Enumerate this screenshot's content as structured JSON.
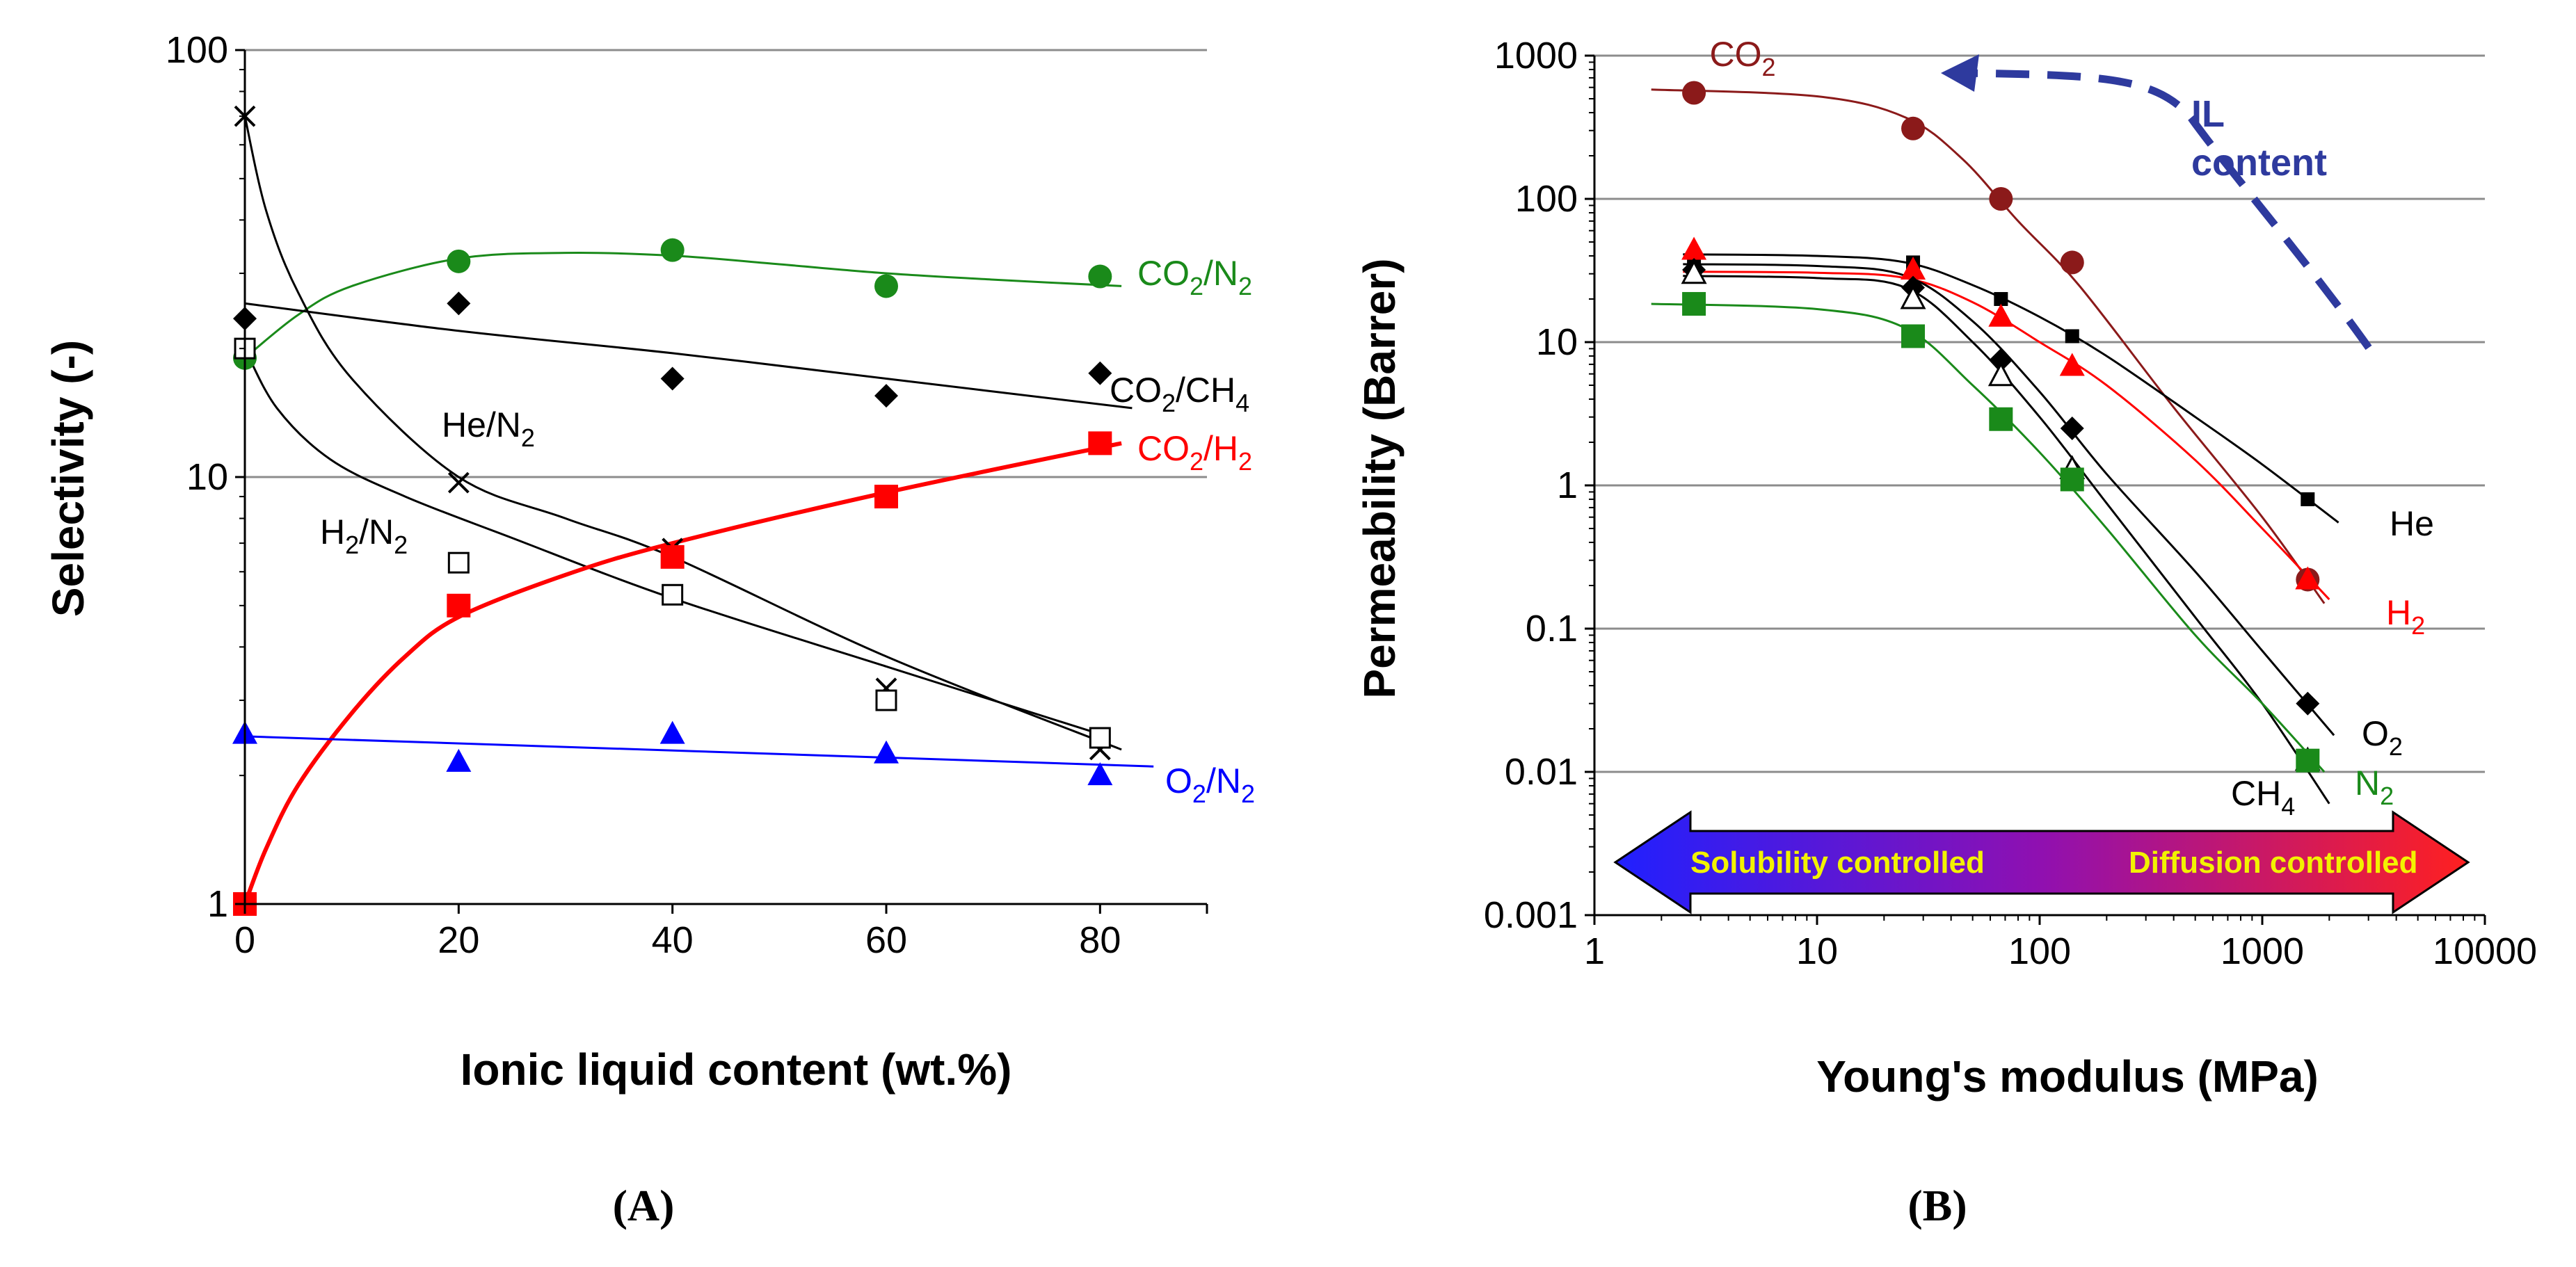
{
  "chart_data": [
    {
      "type": "scatter",
      "panel_label": "(A)",
      "xlabel": "Ionic liquid content (wt.%)",
      "ylabel": "Selectivity  (-)",
      "x_scale": "linear",
      "y_scale": "log",
      "xlim": [
        0,
        90
      ],
      "ylim": [
        1,
        100
      ],
      "x_ticks": [
        "0",
        "20",
        "40",
        "60",
        "80"
      ],
      "y_ticks": [
        "1",
        "10",
        "100"
      ],
      "grid": "horizontal",
      "series": [
        {
          "name": "CO₂/N₂",
          "label_parts": [
            "CO",
            "2",
            "/N",
            "2"
          ],
          "color": "#1a8a1a",
          "marker": "circle",
          "points": [
            [
              0,
              19
            ],
            [
              20,
              32
            ],
            [
              40,
              34
            ],
            [
              60,
              28
            ],
            [
              80,
              29.5
            ]
          ],
          "trend": [
            [
              0,
              19
            ],
            [
              5,
              24
            ],
            [
              10,
              28
            ],
            [
              20,
              32.5
            ],
            [
              30,
              33.5
            ],
            [
              40,
              33
            ],
            [
              50,
              31.5
            ],
            [
              60,
              30
            ],
            [
              70,
              29
            ],
            [
              82,
              28
            ]
          ]
        },
        {
          "name": "CO₂/CH₄",
          "label_parts": [
            "CO",
            "2",
            "/CH",
            "4"
          ],
          "color": "#000000",
          "marker": "diamond",
          "points": [
            [
              0,
              23.5
            ],
            [
              20,
              25.5
            ],
            [
              40,
              17
            ],
            [
              60,
              15.5
            ],
            [
              80,
              17.5
            ]
          ],
          "trend": [
            [
              0,
              25.5
            ],
            [
              20,
              22
            ],
            [
              40,
              19.5
            ],
            [
              60,
              17
            ],
            [
              83,
              14.5
            ]
          ]
        },
        {
          "name": "He/N₂",
          "label_parts": [
            "He/N",
            "2"
          ],
          "color": "#000000",
          "marker": "x",
          "points": [
            [
              0,
              70
            ],
            [
              20,
              9.7
            ],
            [
              40,
              6.8
            ],
            [
              60,
              3.2
            ],
            [
              80,
              2.3
            ]
          ],
          "trend": [
            [
              0,
              70
            ],
            [
              2,
              42
            ],
            [
              5,
              27
            ],
            [
              10,
              17
            ],
            [
              20,
              10
            ],
            [
              30,
              8
            ],
            [
              40,
              6.5
            ],
            [
              60,
              3.8
            ],
            [
              82,
              2.3
            ]
          ]
        },
        {
          "name": "H₂/N₂",
          "label_parts": [
            "H",
            "2",
            "/N",
            "2"
          ],
          "color": "#000000",
          "marker": "square-open",
          "points": [
            [
              0,
              20
            ],
            [
              20,
              6.3
            ],
            [
              40,
              5.3
            ],
            [
              60,
              3.0
            ],
            [
              80,
              2.45
            ]
          ],
          "trend": [
            [
              0,
              20
            ],
            [
              3,
              14.5
            ],
            [
              8,
              11
            ],
            [
              15,
              9
            ],
            [
              25,
              7.2
            ],
            [
              40,
              5.2
            ],
            [
              60,
              3.6
            ],
            [
              80,
              2.5
            ]
          ]
        },
        {
          "name": "CO₂/H₂",
          "label_parts": [
            "CO",
            "2",
            "/H",
            "2"
          ],
          "color": "#ff0000",
          "marker": "square",
          "points": [
            [
              0,
              1.0
            ],
            [
              20,
              5.0
            ],
            [
              40,
              6.5
            ],
            [
              60,
              9.0
            ],
            [
              80,
              12.0
            ]
          ],
          "trend": [
            [
              0,
              1.0
            ],
            [
              2,
              1.35
            ],
            [
              5,
              1.9
            ],
            [
              10,
              2.8
            ],
            [
              15,
              3.8
            ],
            [
              20,
              4.7
            ],
            [
              30,
              5.9
            ],
            [
              40,
              7.0
            ],
            [
              60,
              9.2
            ],
            [
              82,
              12.0
            ]
          ]
        },
        {
          "name": "O₂/N₂",
          "label_parts": [
            "O",
            "2",
            "/N",
            "2"
          ],
          "color": "#0000ff",
          "marker": "triangle",
          "points": [
            [
              0,
              2.5
            ],
            [
              20,
              2.15
            ],
            [
              40,
              2.5
            ],
            [
              60,
              2.25
            ],
            [
              80,
              2.0
            ]
          ],
          "trend": [
            [
              0,
              2.47
            ],
            [
              85,
              2.1
            ]
          ]
        }
      ]
    },
    {
      "type": "scatter",
      "panel_label": "(B)",
      "xlabel": "Young's modulus (MPa)",
      "ylabel": "Permeability  (Barrer)",
      "x_scale": "log",
      "y_scale": "log",
      "xlim": [
        1,
        10000
      ],
      "ylim": [
        0.001,
        1000
      ],
      "x_ticks": [
        "1",
        "10",
        "100",
        "1000",
        "10000"
      ],
      "y_ticks": [
        "0.001",
        "0.01",
        "0.1",
        "1",
        "10",
        "100",
        "1000"
      ],
      "grid": "horizontal",
      "series": [
        {
          "name": "CO₂",
          "label_parts": [
            "CO",
            "2"
          ],
          "color": "#8b1a1a",
          "marker": "circle",
          "points": [
            [
              2.8,
              550
            ],
            [
              27,
              310
            ],
            [
              67,
              100
            ],
            [
              140,
              36
            ],
            [
              1600,
              0.22
            ]
          ],
          "trend": [
            [
              1.8,
              580
            ],
            [
              10,
              520
            ],
            [
              25,
              370
            ],
            [
              45,
              190
            ],
            [
              80,
              70
            ],
            [
              150,
              25
            ],
            [
              400,
              3.5
            ],
            [
              1000,
              0.6
            ],
            [
              1900,
              0.15
            ]
          ]
        },
        {
          "name": "He",
          "label_parts": [
            "He"
          ],
          "color": "#000000",
          "marker": "square-small",
          "points": [
            [
              2.8,
              35
            ],
            [
              27,
              36
            ],
            [
              67,
              20
            ],
            [
              140,
              11
            ],
            [
              1600,
              0.8
            ]
          ],
          "trend": [
            [
              2.5,
              41
            ],
            [
              10,
              40
            ],
            [
              25,
              36
            ],
            [
              50,
              25
            ],
            [
              100,
              15
            ],
            [
              200,
              8
            ],
            [
              500,
              3
            ],
            [
              1000,
              1.4
            ],
            [
              2200,
              0.55
            ]
          ]
        },
        {
          "name": "H₂",
          "label_parts": [
            "H",
            "2"
          ],
          "color": "#ff0000",
          "marker": "triangle",
          "points": [
            [
              2.8,
              44
            ],
            [
              27,
              32
            ],
            [
              67,
              15
            ],
            [
              140,
              6.8
            ],
            [
              1600,
              0.22
            ]
          ],
          "trend": [
            [
              2.5,
              31
            ],
            [
              10,
              30.5
            ],
            [
              25,
              28
            ],
            [
              50,
              19
            ],
            [
              100,
              10
            ],
            [
              200,
              5
            ],
            [
              500,
              1.5
            ],
            [
              1000,
              0.5
            ],
            [
              2000,
              0.16
            ]
          ]
        },
        {
          "name": "O₂",
          "label_parts": [
            "O",
            "2"
          ],
          "color": "#000000",
          "marker": "diamond",
          "points": [
            [
              2.8,
              32
            ],
            [
              27,
              24
            ],
            [
              67,
              7.5
            ],
            [
              140,
              2.5
            ],
            [
              1600,
              0.03
            ]
          ],
          "trend": [
            [
              2.5,
              35
            ],
            [
              10,
              34
            ],
            [
              25,
              29
            ],
            [
              50,
              14
            ],
            [
              100,
              4.5
            ],
            [
              200,
              1.2
            ],
            [
              500,
              0.25
            ],
            [
              1000,
              0.07
            ],
            [
              2100,
              0.018
            ]
          ]
        },
        {
          "name": "CH₄",
          "label_parts": [
            "CH",
            "4"
          ],
          "color": "#000000",
          "marker": "triangle-open",
          "points": [
            [
              2.8,
              30
            ],
            [
              27,
              20
            ],
            [
              67,
              5.8
            ],
            [
              140,
              1.3
            ],
            [
              1600,
              0.012
            ]
          ],
          "trend": [
            [
              2.5,
              29
            ],
            [
              10,
              28
            ],
            [
              25,
              24
            ],
            [
              50,
              10
            ],
            [
              100,
              3
            ],
            [
              200,
              0.75
            ],
            [
              500,
              0.12
            ],
            [
              1000,
              0.03
            ],
            [
              2000,
              0.006
            ]
          ]
        },
        {
          "name": "N₂",
          "label_parts": [
            "N",
            "2"
          ],
          "color": "#1a8a1a",
          "marker": "square",
          "points": [
            [
              2.8,
              18.5
            ],
            [
              27,
              11
            ],
            [
              67,
              2.9
            ],
            [
              140,
              1.1
            ],
            [
              1600,
              0.012
            ]
          ],
          "trend": [
            [
              1.8,
              18.5
            ],
            [
              10,
              17
            ],
            [
              25,
              12.5
            ],
            [
              50,
              5
            ],
            [
              100,
              1.7
            ],
            [
              200,
              0.5
            ],
            [
              500,
              0.09
            ],
            [
              1000,
              0.03
            ],
            [
              1900,
              0.01
            ]
          ]
        }
      ],
      "annotations": {
        "il_arrow_label": [
          "IL",
          "content"
        ],
        "il_arrow_color": "#2e3a9e",
        "band_left_label": "Solubility controlled",
        "band_right_label": "Diffusion controlled",
        "band_colors": [
          "#2020ff",
          "#9010b0",
          "#ff2020"
        ],
        "band_text_color": "#f2f200"
      }
    }
  ]
}
